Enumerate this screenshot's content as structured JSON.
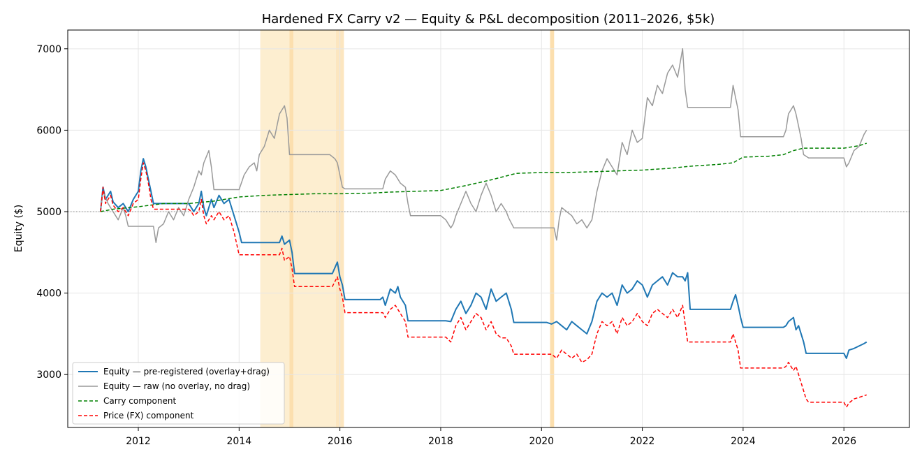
{
  "chart_data": {
    "type": "line",
    "title": "Hardened FX Carry v2 — Equity & P&L decomposition (2011–2026, $5k)",
    "xlabel": "",
    "ylabel": "Equity ($)",
    "xlim": [
      2010.6,
      2027.3
    ],
    "ylim": [
      2350,
      7230
    ],
    "x_ticks": [
      2012,
      2014,
      2016,
      2018,
      2020,
      2022,
      2024,
      2026
    ],
    "y_ticks": [
      3000,
      4000,
      5000,
      6000,
      7000
    ],
    "grid": true,
    "legend_position": "lower-left",
    "reference_line": {
      "y": 5000,
      "style": "dotted",
      "color": "#888888"
    },
    "shaded_regions": [
      {
        "x0": 2014.42,
        "x1": 2015.0,
        "color": "#fdebc8"
      },
      {
        "x0": 2015.0,
        "x1": 2015.08,
        "color": "#fbd9a0"
      },
      {
        "x0": 2015.08,
        "x1": 2015.92,
        "color": "#fdebc8"
      },
      {
        "x0": 2015.92,
        "x1": 2016.08,
        "color": "#fce2b5"
      },
      {
        "x0": 2020.17,
        "x1": 2020.25,
        "color": "#fbd9a0"
      }
    ],
    "series": [
      {
        "name": "Equity — pre-registered (overlay+drag)",
        "color": "#1f77b4",
        "style": "solid",
        "width": 2,
        "x": [
          2011.25,
          2011.3,
          2011.35,
          2011.45,
          2011.5,
          2011.6,
          2011.7,
          2011.8,
          2011.9,
          2012.0,
          2012.05,
          2012.1,
          2012.15,
          2012.2,
          2012.25,
          2012.3,
          2012.4,
          2012.42,
          2012.5,
          2012.6,
          2012.7,
          2012.8,
          2012.9,
          2013.0,
          2013.05,
          2013.1,
          2013.2,
          2013.25,
          2013.3,
          2013.35,
          2013.45,
          2013.5,
          2013.6,
          2013.7,
          2013.8,
          2013.9,
          2014.0,
          2014.05,
          2014.5,
          2014.8,
          2014.85,
          2014.9,
          2015.0,
          2015.05,
          2015.1,
          2015.5,
          2015.85,
          2015.95,
          2016.0,
          2016.05,
          2016.1,
          2016.5,
          2016.8,
          2016.85,
          2016.9,
          2017.0,
          2017.1,
          2017.15,
          2017.2,
          2017.3,
          2017.35,
          2017.5,
          2017.8,
          2018.1,
          2018.2,
          2018.3,
          2018.4,
          2018.5,
          2018.6,
          2018.7,
          2018.8,
          2018.9,
          2019.0,
          2019.1,
          2019.2,
          2019.3,
          2019.4,
          2019.45,
          2019.5,
          2019.8,
          2020.1,
          2020.2,
          2020.3,
          2020.4,
          2020.5,
          2020.6,
          2020.7,
          2020.8,
          2020.9,
          2021.0,
          2021.1,
          2021.2,
          2021.3,
          2021.4,
          2021.5,
          2021.6,
          2021.7,
          2021.8,
          2021.9,
          2022.0,
          2022.1,
          2022.2,
          2022.3,
          2022.4,
          2022.5,
          2022.6,
          2022.7,
          2022.8,
          2022.85,
          2022.9,
          2022.95,
          2023.0,
          2023.5,
          2023.75,
          2023.8,
          2023.85,
          2023.9,
          2023.95,
          2024.0,
          2024.5,
          2024.8,
          2024.85,
          2024.9,
          2025.0,
          2025.05,
          2025.1,
          2025.15,
          2025.2,
          2025.25,
          2025.3,
          2025.5,
          2025.8,
          2026.0,
          2026.05,
          2026.1,
          2026.2,
          2026.3,
          2026.4,
          2026.45
        ],
        "y": [
          5000,
          5300,
          5150,
          5250,
          5120,
          5050,
          5100,
          5000,
          5150,
          5250,
          5500,
          5650,
          5550,
          5400,
          5250,
          5100,
          5100,
          5100,
          5100,
          5100,
          5100,
          5100,
          5100,
          5100,
          5050,
          5000,
          5100,
          5250,
          5050,
          4950,
          5150,
          5050,
          5200,
          5100,
          5150,
          4950,
          4750,
          4620,
          4620,
          4620,
          4700,
          4600,
          4650,
          4500,
          4240,
          4240,
          4240,
          4380,
          4200,
          4100,
          3920,
          3920,
          3920,
          3950,
          3850,
          4050,
          4000,
          4080,
          3950,
          3850,
          3660,
          3660,
          3660,
          3660,
          3650,
          3800,
          3900,
          3750,
          3850,
          4000,
          3950,
          3800,
          4050,
          3900,
          3950,
          4000,
          3800,
          3640,
          3640,
          3640,
          3640,
          3620,
          3650,
          3600,
          3550,
          3650,
          3600,
          3550,
          3500,
          3650,
          3900,
          4000,
          3950,
          4000,
          3850,
          4100,
          4000,
          4050,
          4150,
          4100,
          3950,
          4100,
          4150,
          4200,
          4100,
          4250,
          4200,
          4200,
          4150,
          4250,
          3800,
          3800,
          3800,
          3800,
          3900,
          3980,
          3850,
          3700,
          3580,
          3580,
          3580,
          3600,
          3650,
          3700,
          3550,
          3600,
          3500,
          3400,
          3260,
          3260,
          3260,
          3260,
          3260,
          3200,
          3300,
          3320,
          3350,
          3380,
          3400
        ]
      },
      {
        "name": "Equity — raw (no overlay, no drag)",
        "color": "#999999",
        "style": "solid",
        "width": 1.5,
        "x": [
          2011.25,
          2011.3,
          2011.4,
          2011.5,
          2011.6,
          2011.7,
          2011.75,
          2011.8,
          2012.2,
          2012.3,
          2012.35,
          2012.4,
          2012.5,
          2012.6,
          2012.7,
          2012.8,
          2012.9,
          2013.0,
          2013.1,
          2013.2,
          2013.25,
          2013.3,
          2013.4,
          2013.45,
          2013.5,
          2014.0,
          2014.1,
          2014.2,
          2014.3,
          2014.35,
          2014.4,
          2014.5,
          2014.6,
          2014.7,
          2014.8,
          2014.9,
          2014.95,
          2015.0,
          2015.05,
          2015.1,
          2015.8,
          2015.9,
          2015.95,
          2016.0,
          2016.05,
          2016.1,
          2016.85,
          2016.9,
          2017.0,
          2017.1,
          2017.2,
          2017.3,
          2017.35,
          2017.4,
          2017.45,
          2017.5,
          2018.0,
          2018.1,
          2018.2,
          2018.25,
          2018.3,
          2018.4,
          2018.5,
          2018.6,
          2018.7,
          2018.8,
          2018.9,
          2019.0,
          2019.1,
          2019.2,
          2019.3,
          2019.35,
          2019.45,
          2019.5,
          2020.25,
          2020.3,
          2020.35,
          2020.4,
          2020.5,
          2020.6,
          2020.7,
          2020.8,
          2020.9,
          2021.0,
          2021.1,
          2021.2,
          2021.3,
          2021.4,
          2021.5,
          2021.6,
          2021.7,
          2021.8,
          2021.9,
          2022.0,
          2022.1,
          2022.2,
          2022.3,
          2022.4,
          2022.5,
          2022.6,
          2022.7,
          2022.8,
          2022.85,
          2022.9,
          2022.95,
          2023.0,
          2023.75,
          2023.8,
          2023.85,
          2023.9,
          2023.95,
          2024.0,
          2024.8,
          2024.85,
          2024.9,
          2025.0,
          2025.05,
          2025.1,
          2025.15,
          2025.2,
          2025.3,
          2026.0,
          2026.05,
          2026.1,
          2026.2,
          2026.3,
          2026.4,
          2026.45
        ],
        "y": [
          5000,
          5250,
          5100,
          5000,
          4900,
          5050,
          4950,
          4820,
          4820,
          4820,
          4620,
          4800,
          4850,
          5000,
          4900,
          5050,
          4950,
          5150,
          5300,
          5500,
          5450,
          5600,
          5750,
          5550,
          5270,
          5270,
          5450,
          5550,
          5600,
          5500,
          5700,
          5800,
          6000,
          5900,
          6200,
          6300,
          6150,
          5700,
          5700,
          5700,
          5700,
          5650,
          5600,
          5450,
          5300,
          5280,
          5280,
          5400,
          5500,
          5450,
          5350,
          5300,
          5100,
          4950,
          4950,
          4950,
          4950,
          4900,
          4800,
          4850,
          4950,
          5100,
          5250,
          5100,
          5000,
          5200,
          5350,
          5200,
          5000,
          5100,
          5000,
          4920,
          4800,
          4800,
          4800,
          4650,
          4900,
          5050,
          5000,
          4950,
          4850,
          4900,
          4800,
          4900,
          5250,
          5500,
          5650,
          5550,
          5450,
          5850,
          5700,
          6000,
          5850,
          5900,
          6400,
          6300,
          6550,
          6450,
          6700,
          6800,
          6650,
          7000,
          6500,
          6280,
          6280,
          6280,
          6280,
          6550,
          6400,
          6250,
          5920,
          5920,
          5920,
          6000,
          6200,
          6300,
          6200,
          6050,
          5900,
          5700,
          5660,
          5660,
          5550,
          5600,
          5750,
          5800,
          5950,
          6000
        ]
      },
      {
        "name": "Carry component",
        "color": "#008000",
        "style": "dashed",
        "width": 1.5,
        "x": [
          2011.25,
          2011.5,
          2012.0,
          2012.5,
          2013.0,
          2013.5,
          2014.0,
          2014.5,
          2015.0,
          2015.5,
          2016.0,
          2016.5,
          2017.0,
          2017.5,
          2018.0,
          2018.5,
          2019.0,
          2019.5,
          2020.0,
          2020.5,
          2021.0,
          2021.5,
          2022.0,
          2022.5,
          2023.0,
          2023.5,
          2023.8,
          2024.0,
          2024.5,
          2024.8,
          2025.0,
          2025.2,
          2025.5,
          2026.0,
          2026.3,
          2026.45
        ],
        "y": [
          5000,
          5030,
          5060,
          5100,
          5100,
          5130,
          5180,
          5200,
          5210,
          5220,
          5220,
          5225,
          5240,
          5250,
          5260,
          5320,
          5390,
          5470,
          5480,
          5480,
          5490,
          5500,
          5510,
          5530,
          5560,
          5580,
          5600,
          5670,
          5680,
          5700,
          5750,
          5780,
          5780,
          5780,
          5810,
          5840
        ]
      },
      {
        "name": "Price (FX) component",
        "color": "#ff0000",
        "style": "dashed",
        "width": 1.5,
        "x": [
          2011.25,
          2011.3,
          2011.35,
          2011.45,
          2011.5,
          2011.6,
          2011.7,
          2011.8,
          2011.9,
          2012.0,
          2012.05,
          2012.1,
          2012.15,
          2012.2,
          2012.25,
          2012.3,
          2012.35,
          2012.4,
          2013.0,
          2013.05,
          2013.1,
          2013.2,
          2013.25,
          2013.3,
          2013.35,
          2013.45,
          2013.5,
          2013.6,
          2013.7,
          2013.8,
          2013.9,
          2014.0,
          2014.05,
          2014.8,
          2014.85,
          2014.9,
          2015.0,
          2015.05,
          2015.1,
          2015.85,
          2015.95,
          2016.0,
          2016.05,
          2016.1,
          2016.85,
          2016.9,
          2017.0,
          2017.1,
          2017.2,
          2017.3,
          2017.35,
          2018.1,
          2018.2,
          2018.3,
          2018.4,
          2018.5,
          2018.6,
          2018.7,
          2018.8,
          2018.9,
          2019.0,
          2019.1,
          2019.2,
          2019.3,
          2019.4,
          2019.45,
          2020.2,
          2020.3,
          2020.4,
          2020.5,
          2020.6,
          2020.7,
          2020.8,
          2020.9,
          2021.0,
          2021.1,
          2021.2,
          2021.3,
          2021.4,
          2021.5,
          2021.6,
          2021.7,
          2021.8,
          2021.9,
          2022.0,
          2022.1,
          2022.2,
          2022.3,
          2022.4,
          2022.5,
          2022.6,
          2022.7,
          2022.8,
          2022.85,
          2022.9,
          2022.95,
          2023.75,
          2023.8,
          2023.85,
          2023.9,
          2023.95,
          2024.8,
          2024.85,
          2024.9,
          2025.0,
          2025.05,
          2025.1,
          2025.15,
          2025.2,
          2025.25,
          2025.3,
          2026.0,
          2026.05,
          2026.1,
          2026.2,
          2026.3,
          2026.45
        ],
        "y": [
          5000,
          5300,
          5100,
          5200,
          5080,
          5000,
          5050,
          4950,
          5100,
          5150,
          5400,
          5600,
          5500,
          5350,
          5150,
          5030,
          5030,
          5030,
          5030,
          5000,
          4950,
          5000,
          5150,
          4950,
          4850,
          4950,
          4900,
          5000,
          4900,
          4950,
          4750,
          4470,
          4470,
          4470,
          4550,
          4400,
          4450,
          4300,
          4080,
          4080,
          4200,
          4050,
          3950,
          3760,
          3760,
          3700,
          3800,
          3850,
          3750,
          3650,
          3460,
          3460,
          3400,
          3600,
          3700,
          3550,
          3650,
          3750,
          3700,
          3550,
          3650,
          3500,
          3450,
          3450,
          3350,
          3250,
          3250,
          3200,
          3300,
          3250,
          3200,
          3250,
          3150,
          3180,
          3250,
          3500,
          3650,
          3600,
          3650,
          3500,
          3700,
          3600,
          3650,
          3750,
          3650,
          3600,
          3750,
          3800,
          3750,
          3700,
          3800,
          3700,
          3850,
          3620,
          3400,
          3400,
          3400,
          3500,
          3400,
          3300,
          3080,
          3080,
          3100,
          3150,
          3050,
          3100,
          3000,
          2900,
          2800,
          2700,
          2660,
          2660,
          2600,
          2650,
          2700,
          2720,
          2750
        ]
      }
    ]
  }
}
